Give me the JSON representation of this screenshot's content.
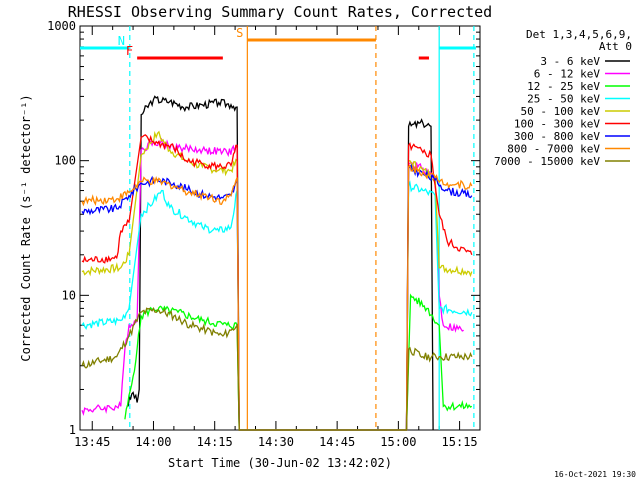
{
  "chart_data": {
    "type": "line",
    "title": "RHESSI Observing Summary Count Rates, Corrected",
    "xlabel": "Start Time (30-Jun-02 13:42:02)",
    "ylabel": "Corrected Count Rate (s⁻¹ detector⁻¹)",
    "y_scale": "log",
    "ylim": [
      1,
      1000
    ],
    "xlim_minutes": [
      0,
      98
    ],
    "x_ticks": [
      {
        "label": "13:45",
        "m": 3
      },
      {
        "label": "14:00",
        "m": 18
      },
      {
        "label": "14:15",
        "m": 33
      },
      {
        "label": "14:30",
        "m": 48
      },
      {
        "label": "14:45",
        "m": 63
      },
      {
        "label": "15:00",
        "m": 78
      },
      {
        "label": "15:15",
        "m": 93
      }
    ],
    "y_ticks": [
      {
        "label": "1",
        "v": 1
      },
      {
        "label": "10",
        "v": 10
      },
      {
        "label": "100",
        "v": 100
      },
      {
        "label": "1000",
        "v": 1000
      }
    ],
    "legend_header": [
      "Det 1,3,4,5,6,9,",
      "Att 0"
    ],
    "series": [
      {
        "name": "3 - 6 keV",
        "color": "#000000",
        "values": [
          [
            11.5,
            1.5
          ],
          [
            13,
            1.9
          ],
          [
            14,
            1.6
          ],
          [
            14.5,
            2
          ],
          [
            15,
            220
          ],
          [
            18,
            285
          ],
          [
            22,
            275
          ],
          [
            26,
            250
          ],
          [
            30,
            260
          ],
          [
            34,
            270
          ],
          [
            37,
            260
          ],
          [
            38.5,
            250
          ],
          [
            39,
            1
          ],
          [
            80,
            1
          ],
          [
            80.5,
            180
          ],
          [
            84,
            190
          ],
          [
            86,
            180
          ],
          [
            86.5,
            1
          ]
        ]
      },
      {
        "name": "6 - 12 keV",
        "color": "#ff00ff",
        "values": [
          [
            0.5,
            1.4
          ],
          [
            10,
            1.5
          ],
          [
            11,
            4
          ],
          [
            12,
            6
          ],
          [
            14,
            6.5
          ],
          [
            15,
            120
          ],
          [
            18,
            140
          ],
          [
            24,
            125
          ],
          [
            30,
            120
          ],
          [
            36,
            115
          ],
          [
            38.5,
            125
          ],
          [
            39,
            1
          ],
          [
            80,
            1
          ],
          [
            80.5,
            95
          ],
          [
            84,
            88
          ],
          [
            87,
            75
          ],
          [
            88,
            10
          ],
          [
            89,
            6
          ],
          [
            94,
            5.5
          ]
        ]
      },
      {
        "name": "12 - 25 keV",
        "color": "#00ff00",
        "values": [
          [
            11,
            1.2
          ],
          [
            13,
            2.5
          ],
          [
            14,
            4
          ],
          [
            15,
            7
          ],
          [
            18,
            8
          ],
          [
            24,
            7.5
          ],
          [
            30,
            6.5
          ],
          [
            36,
            6
          ],
          [
            38.5,
            6
          ],
          [
            39,
            1
          ],
          [
            80,
            1
          ],
          [
            81,
            10
          ],
          [
            85,
            8
          ],
          [
            88,
            6
          ],
          [
            89,
            1.5
          ],
          [
            96,
            1.5
          ]
        ]
      },
      {
        "name": "25 - 50 keV",
        "color": "#00ffff",
        "values": [
          [
            0.5,
            6
          ],
          [
            10,
            6.5
          ],
          [
            12,
            8
          ],
          [
            15,
            40
          ],
          [
            18,
            50
          ],
          [
            20,
            60
          ],
          [
            22,
            45
          ],
          [
            26,
            38
          ],
          [
            30,
            32
          ],
          [
            34,
            30
          ],
          [
            37,
            32
          ],
          [
            38.5,
            60
          ],
          [
            39,
            1
          ],
          [
            80,
            1
          ],
          [
            80.5,
            65
          ],
          [
            84,
            60
          ],
          [
            87,
            55
          ],
          [
            88,
            8
          ],
          [
            96,
            7.5
          ]
        ]
      },
      {
        "name": "50 - 100 keV",
        "color": "#cccc00",
        "values": [
          [
            0.5,
            15
          ],
          [
            10,
            16
          ],
          [
            12,
            20
          ],
          [
            15,
            110
          ],
          [
            19,
            160
          ],
          [
            22,
            120
          ],
          [
            26,
            100
          ],
          [
            30,
            90
          ],
          [
            34,
            85
          ],
          [
            37,
            85
          ],
          [
            38.5,
            100
          ],
          [
            39,
            1
          ],
          [
            80,
            1
          ],
          [
            80.5,
            100
          ],
          [
            84,
            85
          ],
          [
            87,
            75
          ],
          [
            88,
            16
          ],
          [
            96,
            15
          ]
        ]
      },
      {
        "name": "100 - 300 keV",
        "color": "#ff0000",
        "values": [
          [
            0.5,
            18
          ],
          [
            9,
            19
          ],
          [
            10,
            30
          ],
          [
            12,
            35
          ],
          [
            15,
            150
          ],
          [
            19,
            135
          ],
          [
            23,
            125
          ],
          [
            26,
            100
          ],
          [
            30,
            95
          ],
          [
            34,
            90
          ],
          [
            37,
            92
          ],
          [
            38.5,
            130
          ],
          [
            39,
            1
          ],
          [
            80,
            1
          ],
          [
            80.5,
            130
          ],
          [
            84,
            115
          ],
          [
            86,
            110
          ],
          [
            88,
            40
          ],
          [
            90,
            25
          ],
          [
            96,
            20
          ]
        ]
      },
      {
        "name": "300 - 800 keV",
        "color": "#0000ff",
        "values": [
          [
            0.5,
            42
          ],
          [
            9,
            44
          ],
          [
            12,
            55
          ],
          [
            15,
            68
          ],
          [
            19,
            72
          ],
          [
            23,
            68
          ],
          [
            27,
            60
          ],
          [
            31,
            55
          ],
          [
            35,
            53
          ],
          [
            37,
            55
          ],
          [
            38.5,
            70
          ],
          [
            39,
            1
          ],
          [
            80,
            1
          ],
          [
            80.5,
            88
          ],
          [
            84,
            80
          ],
          [
            87,
            72
          ],
          [
            90,
            60
          ],
          [
            96,
            55
          ]
        ]
      },
      {
        "name": "800 - 7000 keV",
        "color": "#ff8800",
        "values": [
          [
            0.5,
            50
          ],
          [
            9,
            52
          ],
          [
            12,
            58
          ],
          [
            15,
            70
          ],
          [
            19,
            70
          ],
          [
            23,
            65
          ],
          [
            27,
            58
          ],
          [
            31,
            55
          ],
          [
            35,
            50
          ],
          [
            37,
            55
          ],
          [
            38.5,
            75
          ],
          [
            39,
            1
          ],
          [
            80,
            1
          ],
          [
            80.5,
            90
          ],
          [
            84,
            82
          ],
          [
            87,
            75
          ],
          [
            90,
            68
          ],
          [
            96,
            65
          ]
        ]
      },
      {
        "name": "7000 - 15000 keV",
        "color": "#808000",
        "values": [
          [
            0.5,
            3
          ],
          [
            9,
            3.5
          ],
          [
            12,
            5
          ],
          [
            15,
            7.5
          ],
          [
            19,
            7.8
          ],
          [
            23,
            7
          ],
          [
            27,
            6
          ],
          [
            31,
            5.5
          ],
          [
            35,
            5
          ],
          [
            37,
            5.5
          ],
          [
            38.5,
            6
          ],
          [
            39,
            1
          ],
          [
            80,
            1
          ],
          [
            80.5,
            4
          ],
          [
            84,
            3.5
          ],
          [
            88,
            3.5
          ],
          [
            96,
            3.5
          ]
        ]
      }
    ],
    "flag_bars": [
      {
        "label": "N",
        "color": "#00ffff",
        "segments": [
          [
            0,
            12
          ],
          [
            88,
            97
          ]
        ]
      },
      {
        "label": "F",
        "color": "#ff0000",
        "segments": [
          [
            14,
            35
          ],
          [
            83,
            85.5
          ]
        ]
      },
      {
        "label": "S",
        "color": "#ff8800",
        "segments": [
          [
            41,
            72.5
          ]
        ]
      }
    ],
    "vertical_markers": [
      {
        "m": 12.2,
        "color": "#00ffff",
        "style": "dashed"
      },
      {
        "m": 41,
        "color": "#ff8800",
        "style": "solid"
      },
      {
        "m": 72.5,
        "color": "#ff8800",
        "style": "dashed"
      },
      {
        "m": 88,
        "color": "#00ffff",
        "style": "solid"
      },
      {
        "m": 96.5,
        "color": "#00ffff",
        "style": "dashed"
      }
    ],
    "timestamp": "16-Oct-2021 19:30"
  }
}
